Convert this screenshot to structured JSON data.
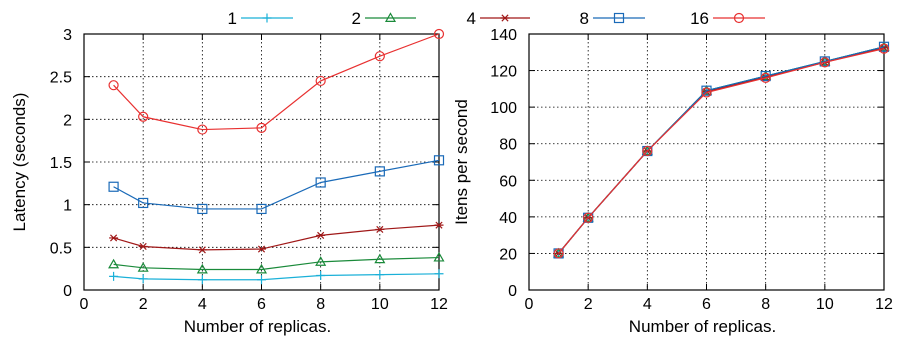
{
  "legend": [
    "1",
    "2",
    "4",
    "8",
    "16"
  ],
  "series_colors": [
    "#1ab0d8",
    "#1a8a3a",
    "#a01818",
    "#1a6ab8",
    "#e83030"
  ],
  "markers": [
    "plus",
    "triangle",
    "star",
    "square",
    "circle"
  ],
  "chart_data": [
    {
      "type": "line",
      "title": "",
      "xlabel": "Number of replicas.",
      "ylabel": "Latency (seconds)",
      "xlim": [
        0,
        12
      ],
      "ylim": [
        0,
        3
      ],
      "xticks": [
        0,
        2,
        4,
        6,
        8,
        10,
        12
      ],
      "xtick_labels": [
        "0",
        "2",
        "4",
        "6",
        "8",
        "10",
        "12"
      ],
      "yticks": [
        0,
        0.5,
        1,
        1.5,
        2,
        2.5,
        3
      ],
      "ytick_labels": [
        "0",
        "0.5",
        "1",
        "1.5",
        "2",
        "2.5",
        "3"
      ],
      "grid": true,
      "legend_position": "top",
      "x": [
        1,
        2,
        4,
        6,
        8,
        10,
        12
      ],
      "series": [
        {
          "name": "1",
          "values": [
            0.16,
            0.13,
            0.12,
            0.12,
            0.17,
            0.18,
            0.19
          ]
        },
        {
          "name": "2",
          "values": [
            0.3,
            0.26,
            0.24,
            0.24,
            0.33,
            0.36,
            0.38
          ]
        },
        {
          "name": "4",
          "values": [
            0.61,
            0.51,
            0.47,
            0.48,
            0.64,
            0.71,
            0.76
          ]
        },
        {
          "name": "8",
          "values": [
            1.21,
            1.02,
            0.95,
            0.95,
            1.26,
            1.39,
            1.52
          ]
        },
        {
          "name": "16",
          "values": [
            2.4,
            2.03,
            1.88,
            1.9,
            2.45,
            2.74,
            3.0
          ]
        }
      ]
    },
    {
      "type": "line",
      "title": "",
      "xlabel": "Number of replicas.",
      "ylabel": "Itens per second",
      "xlim": [
        0,
        12
      ],
      "ylim": [
        0,
        140
      ],
      "xticks": [
        0,
        2,
        4,
        6,
        8,
        10,
        12
      ],
      "xtick_labels": [
        "0",
        "2",
        "4",
        "6",
        "8",
        "10",
        "12"
      ],
      "yticks": [
        0,
        20,
        40,
        60,
        80,
        100,
        120,
        140
      ],
      "ytick_labels": [
        "0",
        "20",
        "40",
        "60",
        "80",
        "100",
        "120",
        "140"
      ],
      "grid": true,
      "x": [
        1,
        2,
        4,
        6,
        8,
        10,
        12
      ],
      "series": [
        {
          "name": "1",
          "values": [
            20,
            39.5,
            76,
            109,
            117,
            125,
            133
          ]
        },
        {
          "name": "2",
          "values": [
            20,
            39.5,
            76,
            109,
            117,
            125,
            133
          ]
        },
        {
          "name": "4",
          "values": [
            20,
            39.5,
            76,
            108.5,
            116.5,
            124.5,
            132.5
          ]
        },
        {
          "name": "8",
          "values": [
            20,
            39.5,
            76,
            109,
            117,
            125,
            133
          ]
        },
        {
          "name": "16",
          "values": [
            20,
            39.5,
            76,
            108,
            116,
            124.5,
            132
          ]
        }
      ]
    }
  ]
}
